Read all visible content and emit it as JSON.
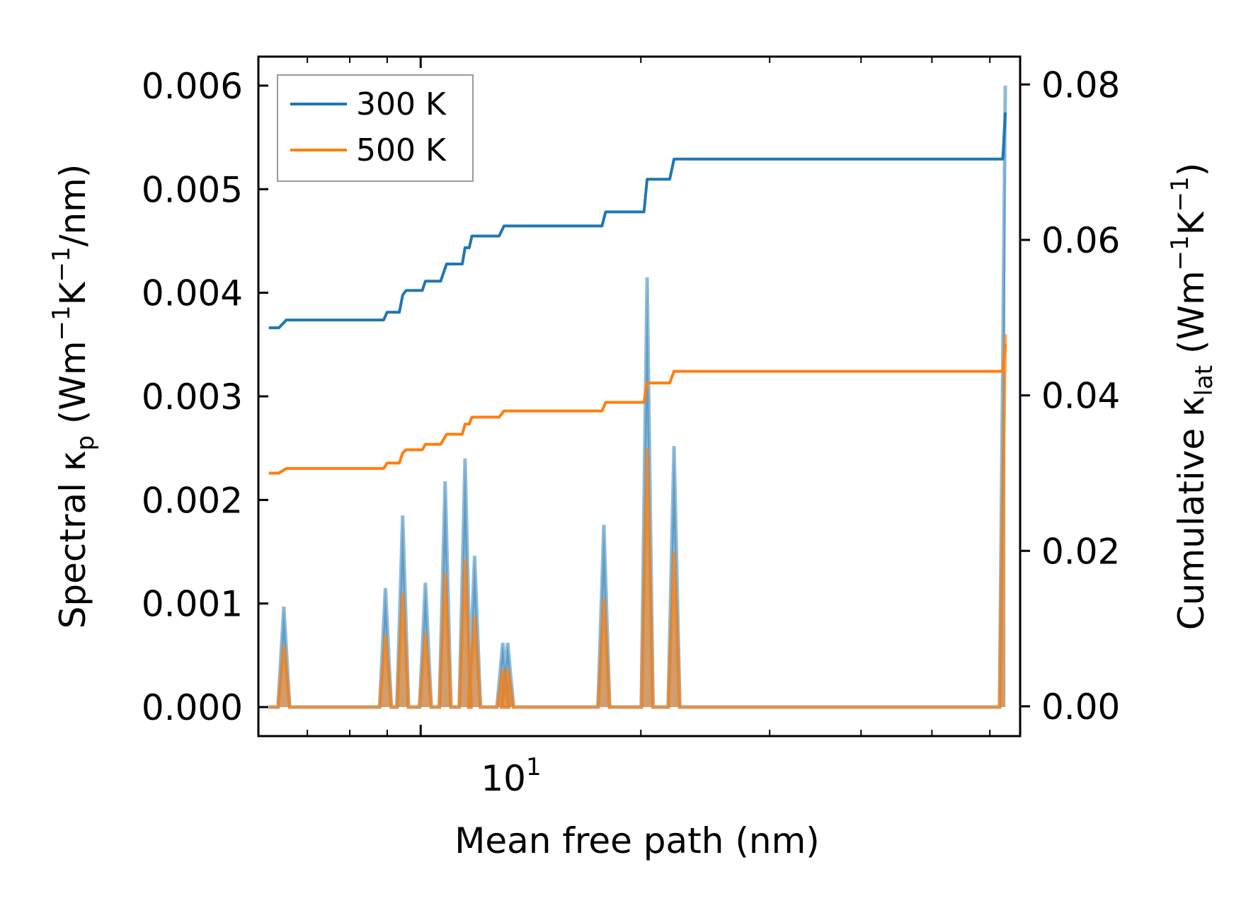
{
  "chart_data": {
    "type": "line",
    "title": "",
    "xlabel": "Mean free path (nm)",
    "xscale": "log",
    "xlim": [
      6.0,
      66.0
    ],
    "x_major_tick": {
      "value": 10,
      "base": "10",
      "exp": "1"
    },
    "ylabel_left": {
      "text": "Spectral κ",
      "sub": "p",
      "units_pre": " (Wm",
      "sup1": "−1",
      "mid": "K",
      "sup2": "−1",
      "units_post": "/nm)"
    },
    "ylabel_right": {
      "text": "Cumulative κ",
      "sub": "lat",
      "units_pre": " (Wm",
      "sup1": "−1",
      "mid": "K",
      "sup2": "−1",
      "units_post": ")"
    },
    "ylim_left": [
      -0.00028,
      0.00628
    ],
    "ylim_right": [
      -0.00383,
      0.08358
    ],
    "yticks_left": [
      "0.000",
      "0.001",
      "0.002",
      "0.003",
      "0.004",
      "0.005",
      "0.006"
    ],
    "yticks_right": [
      "0.00",
      "0.02",
      "0.04",
      "0.06",
      "0.08"
    ],
    "legend": {
      "position": "top-left",
      "entries": [
        {
          "name": "300 K",
          "color": "#1f77b4"
        },
        {
          "name": "500 K",
          "color": "#ff7f0e"
        }
      ]
    },
    "spectral_series": [
      {
        "name": "300 K spectral",
        "color": "#1f77b4",
        "peaks": [
          {
            "x": 6.5,
            "y": 0.00097
          },
          {
            "x": 8.95,
            "y": 0.00115
          },
          {
            "x": 9.45,
            "y": 0.00185
          },
          {
            "x": 10.15,
            "y": 0.0012
          },
          {
            "x": 10.8,
            "y": 0.00218
          },
          {
            "x": 11.5,
            "y": 0.0024
          },
          {
            "x": 11.85,
            "y": 0.00146
          },
          {
            "x": 12.95,
            "y": 0.00062
          },
          {
            "x": 13.15,
            "y": 0.00062
          },
          {
            "x": 17.8,
            "y": 0.00176
          },
          {
            "x": 20.4,
            "y": 0.00415
          },
          {
            "x": 22.2,
            "y": 0.00252
          },
          {
            "x": 63.0,
            "y": 0.006
          }
        ]
      },
      {
        "name": "500 K spectral",
        "color": "#ff7f0e",
        "peaks": [
          {
            "x": 6.5,
            "y": 0.0006
          },
          {
            "x": 8.95,
            "y": 0.0007
          },
          {
            "x": 9.45,
            "y": 0.0011
          },
          {
            "x": 10.15,
            "y": 0.00072
          },
          {
            "x": 10.8,
            "y": 0.0013
          },
          {
            "x": 11.5,
            "y": 0.00143
          },
          {
            "x": 11.85,
            "y": 0.00088
          },
          {
            "x": 12.95,
            "y": 0.00037
          },
          {
            "x": 13.15,
            "y": 0.00037
          },
          {
            "x": 17.8,
            "y": 0.00105
          },
          {
            "x": 20.4,
            "y": 0.0025
          },
          {
            "x": 22.2,
            "y": 0.0015
          },
          {
            "x": 63.0,
            "y": 0.0036
          }
        ]
      }
    ],
    "cumulative_series": [
      {
        "name": "300 K",
        "color": "#1f77b4",
        "x": [
          6.2,
          6.4,
          6.55,
          8.9,
          9.0,
          9.35,
          9.45,
          9.55,
          10.05,
          10.15,
          10.65,
          10.85,
          11.4,
          11.5,
          11.65,
          11.75,
          11.9,
          12.8,
          13.0,
          17.7,
          17.9,
          20.2,
          20.4,
          21.9,
          22.2,
          62.5,
          63.0
        ],
        "y": [
          0.0487,
          0.0487,
          0.0497,
          0.0497,
          0.0507,
          0.0507,
          0.0529,
          0.0535,
          0.0535,
          0.0547,
          0.0547,
          0.0569,
          0.0569,
          0.059,
          0.059,
          0.0605,
          0.0605,
          0.0605,
          0.0618,
          0.0618,
          0.0636,
          0.0636,
          0.0678,
          0.0678,
          0.0704,
          0.0704,
          0.0764
        ]
      },
      {
        "name": "500 K",
        "color": "#ff7f0e",
        "x": [
          6.2,
          6.4,
          6.55,
          8.9,
          9.0,
          9.35,
          9.45,
          9.55,
          10.05,
          10.15,
          10.65,
          10.85,
          11.4,
          11.5,
          11.65,
          11.75,
          11.9,
          12.8,
          13.0,
          17.7,
          17.9,
          20.2,
          20.4,
          21.9,
          22.2,
          62.5,
          63.0
        ],
        "y": [
          0.03,
          0.03,
          0.0306,
          0.0306,
          0.0313,
          0.0313,
          0.0326,
          0.033,
          0.033,
          0.0337,
          0.0337,
          0.035,
          0.035,
          0.0363,
          0.0363,
          0.0372,
          0.0372,
          0.0372,
          0.038,
          0.038,
          0.0391,
          0.0391,
          0.0416,
          0.0416,
          0.0431,
          0.0431,
          0.0466
        ]
      }
    ]
  }
}
